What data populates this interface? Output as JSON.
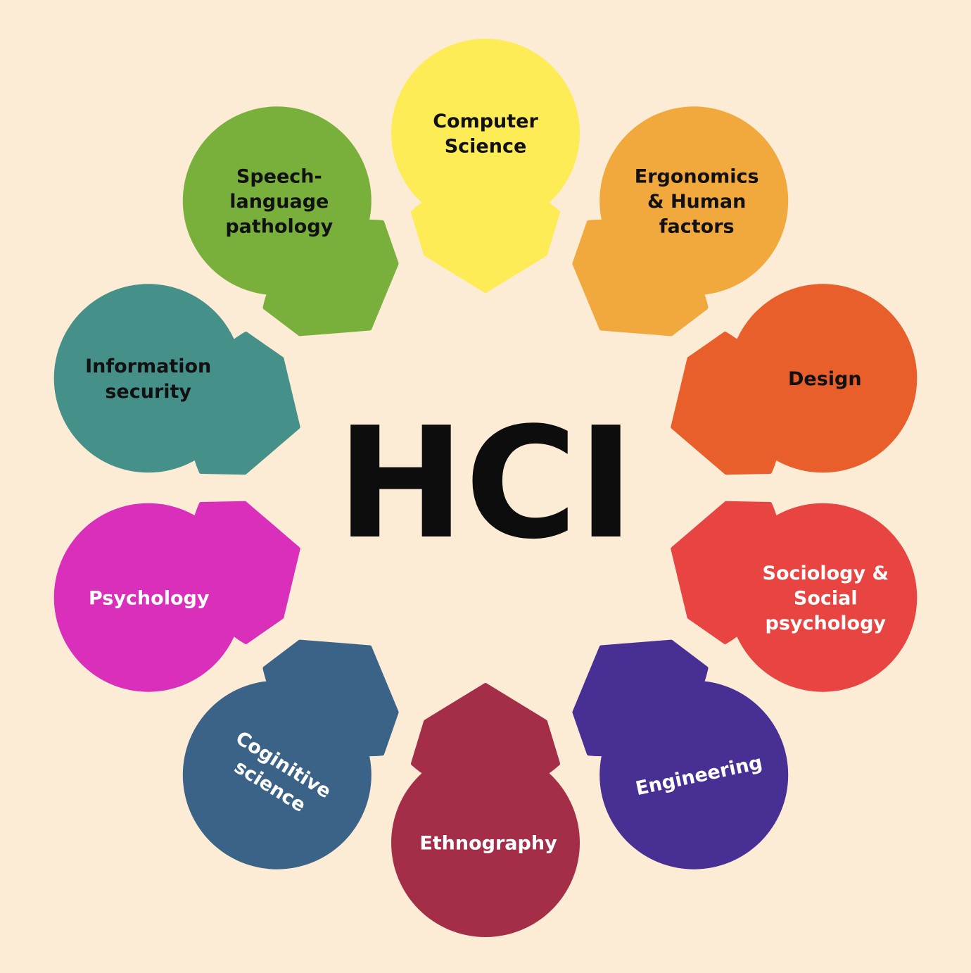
{
  "background_color": "#fcecd5",
  "center": {
    "title": "HCI",
    "color": "#0d0d0d"
  },
  "disciplines": [
    {
      "id": "computer-science",
      "lines": [
        "Computer",
        "Science"
      ],
      "color": "#fdec55",
      "text_color": "#111111"
    },
    {
      "id": "ergonomics",
      "lines": [
        "Ergonomics",
        "& Human",
        "factors"
      ],
      "color": "#f1a93d",
      "text_color": "#111111"
    },
    {
      "id": "design",
      "lines": [
        "Design"
      ],
      "color": "#e85f2c",
      "text_color": "#111111"
    },
    {
      "id": "sociology",
      "lines": [
        "Sociology &",
        "Social",
        "psychology"
      ],
      "color": "#e74442",
      "text_color": "#ffffff"
    },
    {
      "id": "engineering",
      "lines": [
        "Engineering"
      ],
      "color": "#472f94",
      "text_color": "#ffffff"
    },
    {
      "id": "ethnography",
      "lines": [
        "Ethnography"
      ],
      "color": "#a42e47",
      "text_color": "#ffffff"
    },
    {
      "id": "cognitive-science",
      "lines": [
        "Coginitive",
        "science"
      ],
      "color": "#3b6387",
      "text_color": "#ffffff"
    },
    {
      "id": "psychology",
      "lines": [
        "Psychology"
      ],
      "color": "#d92fbb",
      "text_color": "#ffffff"
    },
    {
      "id": "information-security",
      "lines": [
        "Information",
        "security"
      ],
      "color": "#45918a",
      "text_color": "#111111"
    },
    {
      "id": "speech-language",
      "lines": [
        "Speech-",
        "language",
        "pathology"
      ],
      "color": "#79b03b",
      "text_color": "#111111"
    }
  ]
}
